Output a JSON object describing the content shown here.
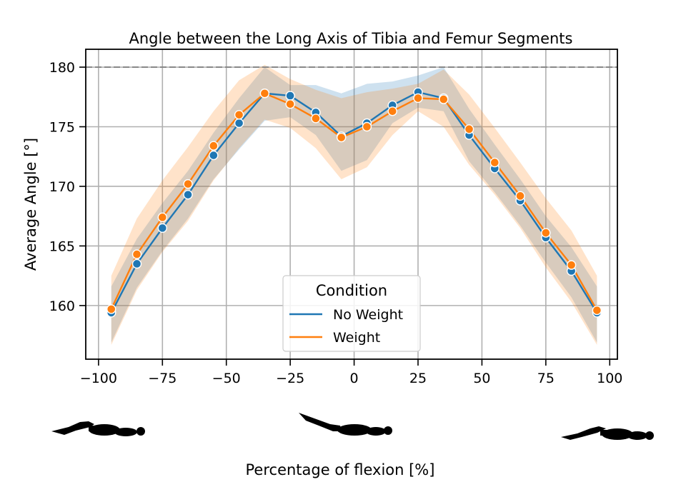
{
  "chart_data": {
    "type": "line",
    "title": "Angle between the Long Axis of Tibia and Femur Segments",
    "xlabel": "Percentage of flexion [%]",
    "ylabel": "Average Angle [°]",
    "xlim": [
      -105,
      103
    ],
    "ylim": [
      155.5,
      181.5
    ],
    "x_ticks": [
      -100,
      -75,
      -50,
      -25,
      0,
      25,
      50,
      75,
      100
    ],
    "x_tick_labels": [
      "−100",
      "−75",
      "−50",
      "−25",
      "0",
      "25",
      "50",
      "75",
      "100"
    ],
    "y_ticks": [
      160,
      165,
      170,
      175,
      180
    ],
    "y_tick_labels": [
      "160",
      "165",
      "170",
      "175",
      "180"
    ],
    "grid": true,
    "reference_line": {
      "y": 180,
      "style": "dashed",
      "color": "#888888"
    },
    "legend": {
      "title": "Condition",
      "placement": "lower-center"
    },
    "x": [
      -95,
      -85,
      -75,
      -65,
      -55,
      -45,
      -35,
      -25,
      -15,
      -5,
      5,
      15,
      25,
      35,
      45,
      55,
      65,
      75,
      85,
      95
    ],
    "series": [
      {
        "name": "No Weight",
        "color": "#1f77b4",
        "values": [
          159.4,
          163.5,
          166.5,
          169.3,
          172.6,
          175.3,
          177.8,
          177.6,
          176.2,
          174.2,
          175.3,
          176.8,
          177.9,
          177.4,
          174.3,
          171.5,
          168.8,
          165.7,
          162.9,
          159.4
        ],
        "lower": [
          156.9,
          161.5,
          164.6,
          167.3,
          170.6,
          173.1,
          175.5,
          175.8,
          174.3,
          171.3,
          172.2,
          175.3,
          176.6,
          176.3,
          172.1,
          169.5,
          166.7,
          163.6,
          160.7,
          156.9
        ],
        "upper": [
          161.6,
          165.6,
          168.6,
          171.3,
          174.5,
          177.4,
          180.0,
          178.5,
          178.5,
          177.8,
          178.6,
          178.8,
          179.3,
          180.0,
          176.5,
          173.5,
          170.6,
          167.5,
          164.9,
          161.6
        ]
      },
      {
        "name": "Weight",
        "color": "#ff7f0e",
        "values": [
          159.7,
          164.3,
          167.4,
          170.2,
          173.4,
          176.0,
          177.8,
          176.9,
          175.7,
          174.1,
          175.0,
          176.3,
          177.4,
          177.3,
          174.8,
          172.0,
          169.2,
          166.1,
          163.4,
          159.6
        ],
        "lower": [
          156.7,
          161.3,
          164.5,
          167.1,
          170.5,
          173.2,
          175.6,
          174.9,
          173.2,
          170.6,
          171.6,
          174.3,
          176.3,
          175.0,
          171.8,
          169.3,
          166.5,
          163.2,
          160.3,
          156.7
        ],
        "upper": [
          162.5,
          167.3,
          170.5,
          173.3,
          176.3,
          178.9,
          180.2,
          179.0,
          178.1,
          177.4,
          177.9,
          178.2,
          178.6,
          179.8,
          177.7,
          174.9,
          172.0,
          169.0,
          166.3,
          162.5
        ]
      }
    ]
  },
  "icons": [
    "flexion-neg100-figure-icon",
    "flexion-0-figure-icon",
    "flexion-100-figure-icon"
  ]
}
